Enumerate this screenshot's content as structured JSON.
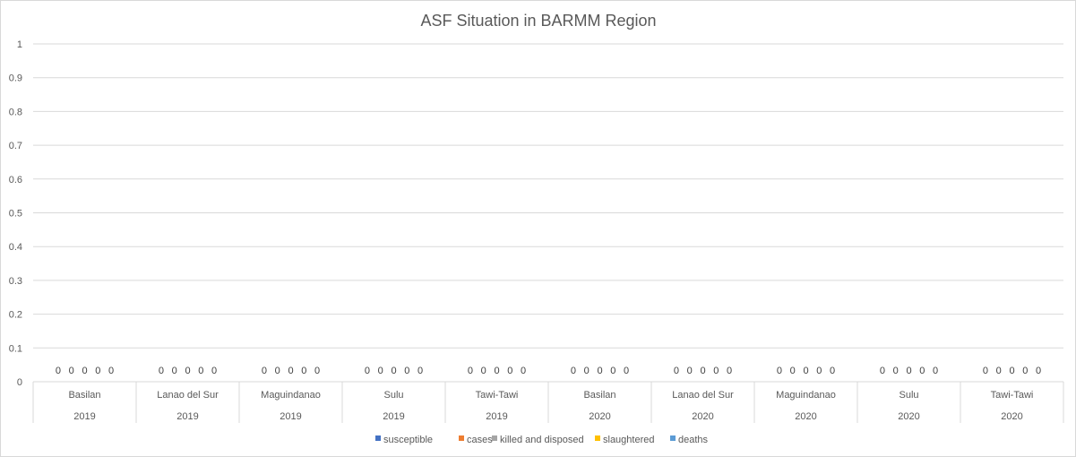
{
  "chart_data": {
    "type": "bar",
    "title": "ASF Situation in BARMM Region",
    "xlabel": "",
    "ylabel": "",
    "ylim": [
      0,
      1
    ],
    "yticks": [
      "0",
      "0.1",
      "0.2",
      "0.3",
      "0.4",
      "0.5",
      "0.6",
      "0.7",
      "0.8",
      "0.9",
      "1"
    ],
    "categories": [
      {
        "name": "Basilan",
        "year": "2019"
      },
      {
        "name": "Lanao del Sur",
        "year": "2019"
      },
      {
        "name": "Maguindanao",
        "year": "2019"
      },
      {
        "name": "Sulu",
        "year": "2019"
      },
      {
        "name": "Tawi-Tawi",
        "year": "2019"
      },
      {
        "name": "Basilan",
        "year": "2020"
      },
      {
        "name": "Lanao del Sur",
        "year": "2020"
      },
      {
        "name": "Maguindanao",
        "year": "2020"
      },
      {
        "name": "Sulu",
        "year": "2020"
      },
      {
        "name": "Tawi-Tawi",
        "year": "2020"
      }
    ],
    "series": [
      {
        "name": "susceptible",
        "color": "#4472c4",
        "values": [
          0,
          0,
          0,
          0,
          0,
          0,
          0,
          0,
          0,
          0
        ]
      },
      {
        "name": "cases",
        "color": "#ed7d31",
        "values": [
          0,
          0,
          0,
          0,
          0,
          0,
          0,
          0,
          0,
          0
        ]
      },
      {
        "name": "killed and disposed",
        "color": "#a5a5a5",
        "values": [
          0,
          0,
          0,
          0,
          0,
          0,
          0,
          0,
          0,
          0
        ]
      },
      {
        "name": "slaughtered",
        "color": "#ffc000",
        "values": [
          0,
          0,
          0,
          0,
          0,
          0,
          0,
          0,
          0,
          0
        ]
      },
      {
        "name": "deaths",
        "color": "#5b9bd5",
        "values": [
          0,
          0,
          0,
          0,
          0,
          0,
          0,
          0,
          0,
          0
        ]
      }
    ],
    "grid": true,
    "data_labels": true,
    "legend": "bottom"
  }
}
